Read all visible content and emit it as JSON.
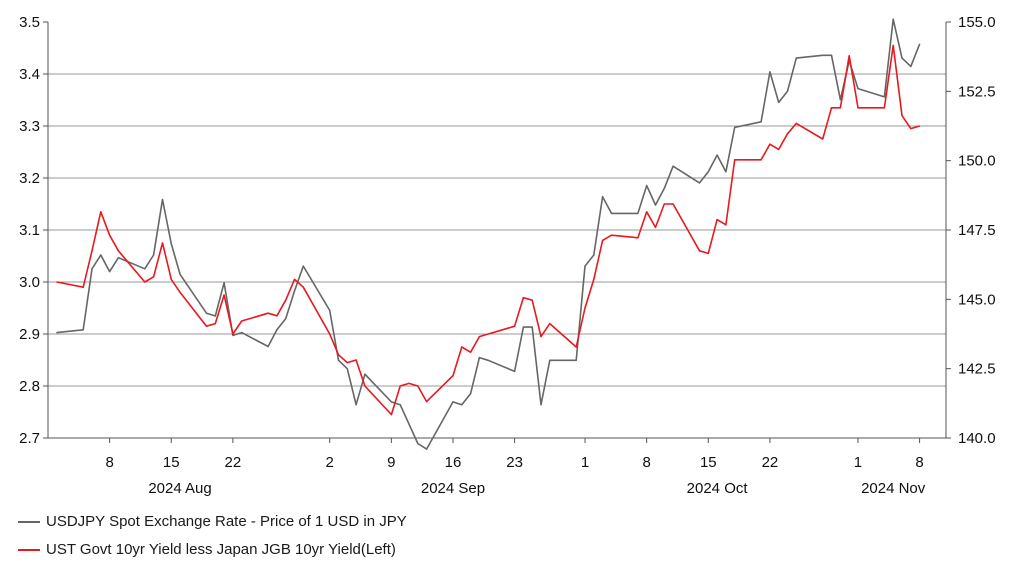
{
  "chart_data": {
    "type": "line",
    "x_axis": {
      "day_ticks": [
        "8",
        "15",
        "22",
        "2",
        "9",
        "16",
        "23",
        "1",
        "8",
        "15",
        "22",
        "1",
        "8"
      ],
      "month_labels": [
        "2024 Aug",
        "2024 Sep",
        "2024 Oct",
        "2024 Nov"
      ]
    },
    "y_left": {
      "ylim": [
        2.7,
        3.5
      ],
      "ticks": [
        "2.7",
        "2.8",
        "2.9",
        "3.0",
        "3.1",
        "3.2",
        "3.3",
        "3.4",
        "3.5"
      ]
    },
    "y_right": {
      "ylim": [
        140.0,
        155.0
      ],
      "ticks": [
        "140.0",
        "142.5",
        "145.0",
        "147.5",
        "150.0",
        "152.5",
        "155.0"
      ]
    },
    "grid": true,
    "legend_position": "bottom-left",
    "series": [
      {
        "name": "USDJPY Spot Exchange Rate - Price of 1 USD in JPY",
        "axis": "right",
        "color": "#666666",
        "x": [
          "2024-08-02",
          "2024-08-05",
          "2024-08-06",
          "2024-08-07",
          "2024-08-08",
          "2024-08-09",
          "2024-08-12",
          "2024-08-13",
          "2024-08-14",
          "2024-08-15",
          "2024-08-16",
          "2024-08-19",
          "2024-08-20",
          "2024-08-21",
          "2024-08-22",
          "2024-08-23",
          "2024-08-26",
          "2024-08-27",
          "2024-08-28",
          "2024-08-29",
          "2024-08-30",
          "2024-09-02",
          "2024-09-03",
          "2024-09-04",
          "2024-09-05",
          "2024-09-06",
          "2024-09-09",
          "2024-09-10",
          "2024-09-11",
          "2024-09-12",
          "2024-09-13",
          "2024-09-16",
          "2024-09-17",
          "2024-09-18",
          "2024-09-19",
          "2024-09-20",
          "2024-09-23",
          "2024-09-24",
          "2024-09-25",
          "2024-09-26",
          "2024-09-27",
          "2024-09-30",
          "2024-10-01",
          "2024-10-02",
          "2024-10-03",
          "2024-10-04",
          "2024-10-07",
          "2024-10-08",
          "2024-10-09",
          "2024-10-10",
          "2024-10-11",
          "2024-10-14",
          "2024-10-15",
          "2024-10-16",
          "2024-10-17",
          "2024-10-18",
          "2024-10-21",
          "2024-10-22",
          "2024-10-23",
          "2024-10-24",
          "2024-10-25",
          "2024-10-28",
          "2024-10-29",
          "2024-10-30",
          "2024-10-31",
          "2024-11-01",
          "2024-11-04",
          "2024-11-05",
          "2024-11-06",
          "2024-11-07",
          "2024-11-08"
        ],
        "y": [
          143.8,
          143.9,
          146.1,
          146.6,
          146.0,
          146.5,
          146.1,
          146.6,
          148.6,
          147.0,
          145.9,
          144.5,
          144.4,
          145.6,
          143.7,
          143.8,
          143.3,
          143.9,
          144.3,
          145.3,
          146.2,
          144.6,
          142.8,
          142.5,
          141.2,
          142.3,
          141.3,
          141.2,
          140.5,
          139.8,
          139.6,
          141.3,
          141.2,
          141.6,
          142.9,
          142.8,
          142.4,
          144.0,
          144.0,
          141.2,
          142.8,
          142.8,
          146.2,
          146.6,
          148.7,
          148.1,
          148.1,
          149.1,
          148.4,
          149.0,
          149.8,
          149.2,
          149.6,
          150.2,
          149.6,
          151.2,
          151.4,
          153.2,
          152.1,
          152.5,
          153.7,
          153.8,
          153.8,
          152.2,
          153.6,
          152.6,
          152.3,
          155.1,
          153.7,
          153.4,
          154.2
        ]
      },
      {
        "name": "UST Govt 10yr Yield less Japan JGB 10yr Yield(Left)",
        "axis": "left",
        "color": "#e8191f",
        "x": [
          "2024-08-02",
          "2024-08-05",
          "2024-08-06",
          "2024-08-07",
          "2024-08-08",
          "2024-08-09",
          "2024-08-12",
          "2024-08-13",
          "2024-08-14",
          "2024-08-15",
          "2024-08-16",
          "2024-08-19",
          "2024-08-20",
          "2024-08-21",
          "2024-08-22",
          "2024-08-23",
          "2024-08-26",
          "2024-08-27",
          "2024-08-28",
          "2024-08-29",
          "2024-08-30",
          "2024-09-02",
          "2024-09-03",
          "2024-09-04",
          "2024-09-05",
          "2024-09-06",
          "2024-09-09",
          "2024-09-10",
          "2024-09-11",
          "2024-09-12",
          "2024-09-13",
          "2024-09-16",
          "2024-09-17",
          "2024-09-18",
          "2024-09-19",
          "2024-09-20",
          "2024-09-23",
          "2024-09-24",
          "2024-09-25",
          "2024-09-26",
          "2024-09-27",
          "2024-09-30",
          "2024-10-01",
          "2024-10-02",
          "2024-10-03",
          "2024-10-04",
          "2024-10-07",
          "2024-10-08",
          "2024-10-09",
          "2024-10-10",
          "2024-10-11",
          "2024-10-14",
          "2024-10-15",
          "2024-10-16",
          "2024-10-17",
          "2024-10-18",
          "2024-10-21",
          "2024-10-22",
          "2024-10-23",
          "2024-10-24",
          "2024-10-25",
          "2024-10-28",
          "2024-10-29",
          "2024-10-30",
          "2024-10-31",
          "2024-11-01",
          "2024-11-04",
          "2024-11-05",
          "2024-11-06",
          "2024-11-07",
          "2024-11-08"
        ],
        "y": [
          3.0,
          2.99,
          3.06,
          3.135,
          3.09,
          3.06,
          3.0,
          3.01,
          3.075,
          3.005,
          2.98,
          2.915,
          2.92,
          2.975,
          2.9,
          2.925,
          2.94,
          2.935,
          2.965,
          3.005,
          2.99,
          2.9,
          2.86,
          2.845,
          2.85,
          2.8,
          2.745,
          2.8,
          2.805,
          2.8,
          2.77,
          2.82,
          2.875,
          2.865,
          2.895,
          2.9,
          2.915,
          2.97,
          2.965,
          2.895,
          2.92,
          2.875,
          2.95,
          3.005,
          3.08,
          3.09,
          3.085,
          3.135,
          3.105,
          3.15,
          3.15,
          3.06,
          3.055,
          3.12,
          3.11,
          3.235,
          3.235,
          3.265,
          3.255,
          3.285,
          3.305,
          3.275,
          3.335,
          3.335,
          3.435,
          3.335,
          3.335,
          3.455,
          3.32,
          3.295,
          3.3
        ]
      }
    ]
  }
}
